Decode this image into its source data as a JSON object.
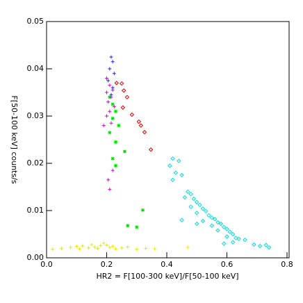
{
  "chart_data": {
    "type": "scatter",
    "xlabel": "HR2 = F[100-300 keV]/F[50-100 keV]",
    "ylabel": "F[50-100 keV]    counts/s",
    "xlim": [
      0,
      0.8
    ],
    "xticks": [
      {
        "value": 0,
        "label": "0.0"
      },
      0.2,
      0.4,
      0.6,
      0.8
    ],
    "ylim": [
      0,
      0.05
    ],
    "yticks": [
      {
        "value": 0,
        "label": "0.00"
      },
      0.01,
      0.02,
      0.03,
      0.04,
      0.05
    ],
    "series": [
      {
        "color": "#e8e800",
        "marker": "plus",
        "x": [
          0.02,
          0.05,
          0.08,
          0.1,
          0.11,
          0.12,
          0.14,
          0.15,
          0.16,
          0.17,
          0.18,
          0.19,
          0.2,
          0.21,
          0.22,
          0.23,
          0.25,
          0.27,
          0.3,
          0.33,
          0.36,
          0.47
        ],
        "values": [
          0.0018,
          0.002,
          0.0022,
          0.0024,
          0.0019,
          0.0025,
          0.0021,
          0.0028,
          0.0023,
          0.002,
          0.0026,
          0.0031,
          0.0027,
          0.0022,
          0.0024,
          0.0019,
          0.0021,
          0.0023,
          0.0018,
          0.002,
          0.0019,
          0.0022
        ]
      },
      {
        "color": "#00dd00",
        "marker": "asterisk",
        "x": [
          0.21,
          0.22,
          0.23,
          0.22,
          0.24,
          0.21,
          0.23,
          0.26,
          0.22,
          0.23,
          0.32,
          0.27,
          0.3
        ],
        "values": [
          0.034,
          0.0325,
          0.031,
          0.0295,
          0.028,
          0.0265,
          0.0245,
          0.0225,
          0.021,
          0.0195,
          0.0101,
          0.0068,
          0.0065
        ]
      },
      {
        "color": "#dd0000",
        "marker": "diamond",
        "x": [
          0.233,
          0.25,
          0.257,
          0.268,
          0.254,
          0.284,
          0.307,
          0.314,
          0.326,
          0.347
        ],
        "values": [
          0.037,
          0.0369,
          0.0354,
          0.034,
          0.0318,
          0.0303,
          0.0288,
          0.028,
          0.0266,
          0.0229
        ]
      },
      {
        "color": "#dd00dd",
        "marker": "plus",
        "x": [
          0.2,
          0.21,
          0.22,
          0.2,
          0.215,
          0.205,
          0.225,
          0.21,
          0.2,
          0.215,
          0.19,
          0.22,
          0.205,
          0.21
        ],
        "values": [
          0.038,
          0.0365,
          0.0355,
          0.035,
          0.034,
          0.033,
          0.032,
          0.031,
          0.03,
          0.0285,
          0.028,
          0.0185,
          0.0165,
          0.0145
        ]
      },
      {
        "color": "#2222ee",
        "marker": "plus",
        "x": [
          0.215,
          0.22,
          0.21,
          0.225,
          0.205,
          0.22,
          0.215
        ],
        "values": [
          0.0425,
          0.0415,
          0.04,
          0.039,
          0.0375,
          0.036,
          0.0345
        ]
      },
      {
        "color": "#00dddd",
        "marker": "diamond",
        "x": [
          0.41,
          0.42,
          0.44,
          0.43,
          0.45,
          0.42,
          0.47,
          0.48,
          0.46,
          0.49,
          0.5,
          0.48,
          0.51,
          0.52,
          0.5,
          0.53,
          0.54,
          0.55,
          0.52,
          0.56,
          0.57,
          0.55,
          0.58,
          0.59,
          0.6,
          0.57,
          0.61,
          0.62,
          0.6,
          0.63,
          0.64,
          0.59,
          0.62,
          0.66,
          0.69,
          0.71,
          0.73,
          0.74,
          0.45,
          0.5
        ],
        "values": [
          0.0195,
          0.021,
          0.0205,
          0.018,
          0.0175,
          0.0165,
          0.014,
          0.0135,
          0.0128,
          0.0125,
          0.0118,
          0.0108,
          0.0112,
          0.0104,
          0.0095,
          0.0099,
          0.009,
          0.0085,
          0.0078,
          0.0082,
          0.0075,
          0.0068,
          0.0072,
          0.0065,
          0.0061,
          0.0058,
          0.0055,
          0.005,
          0.0045,
          0.0042,
          0.004,
          0.003,
          0.0033,
          0.0038,
          0.0028,
          0.0025,
          0.0027,
          0.0022,
          0.008,
          0.0072
        ]
      }
    ]
  }
}
